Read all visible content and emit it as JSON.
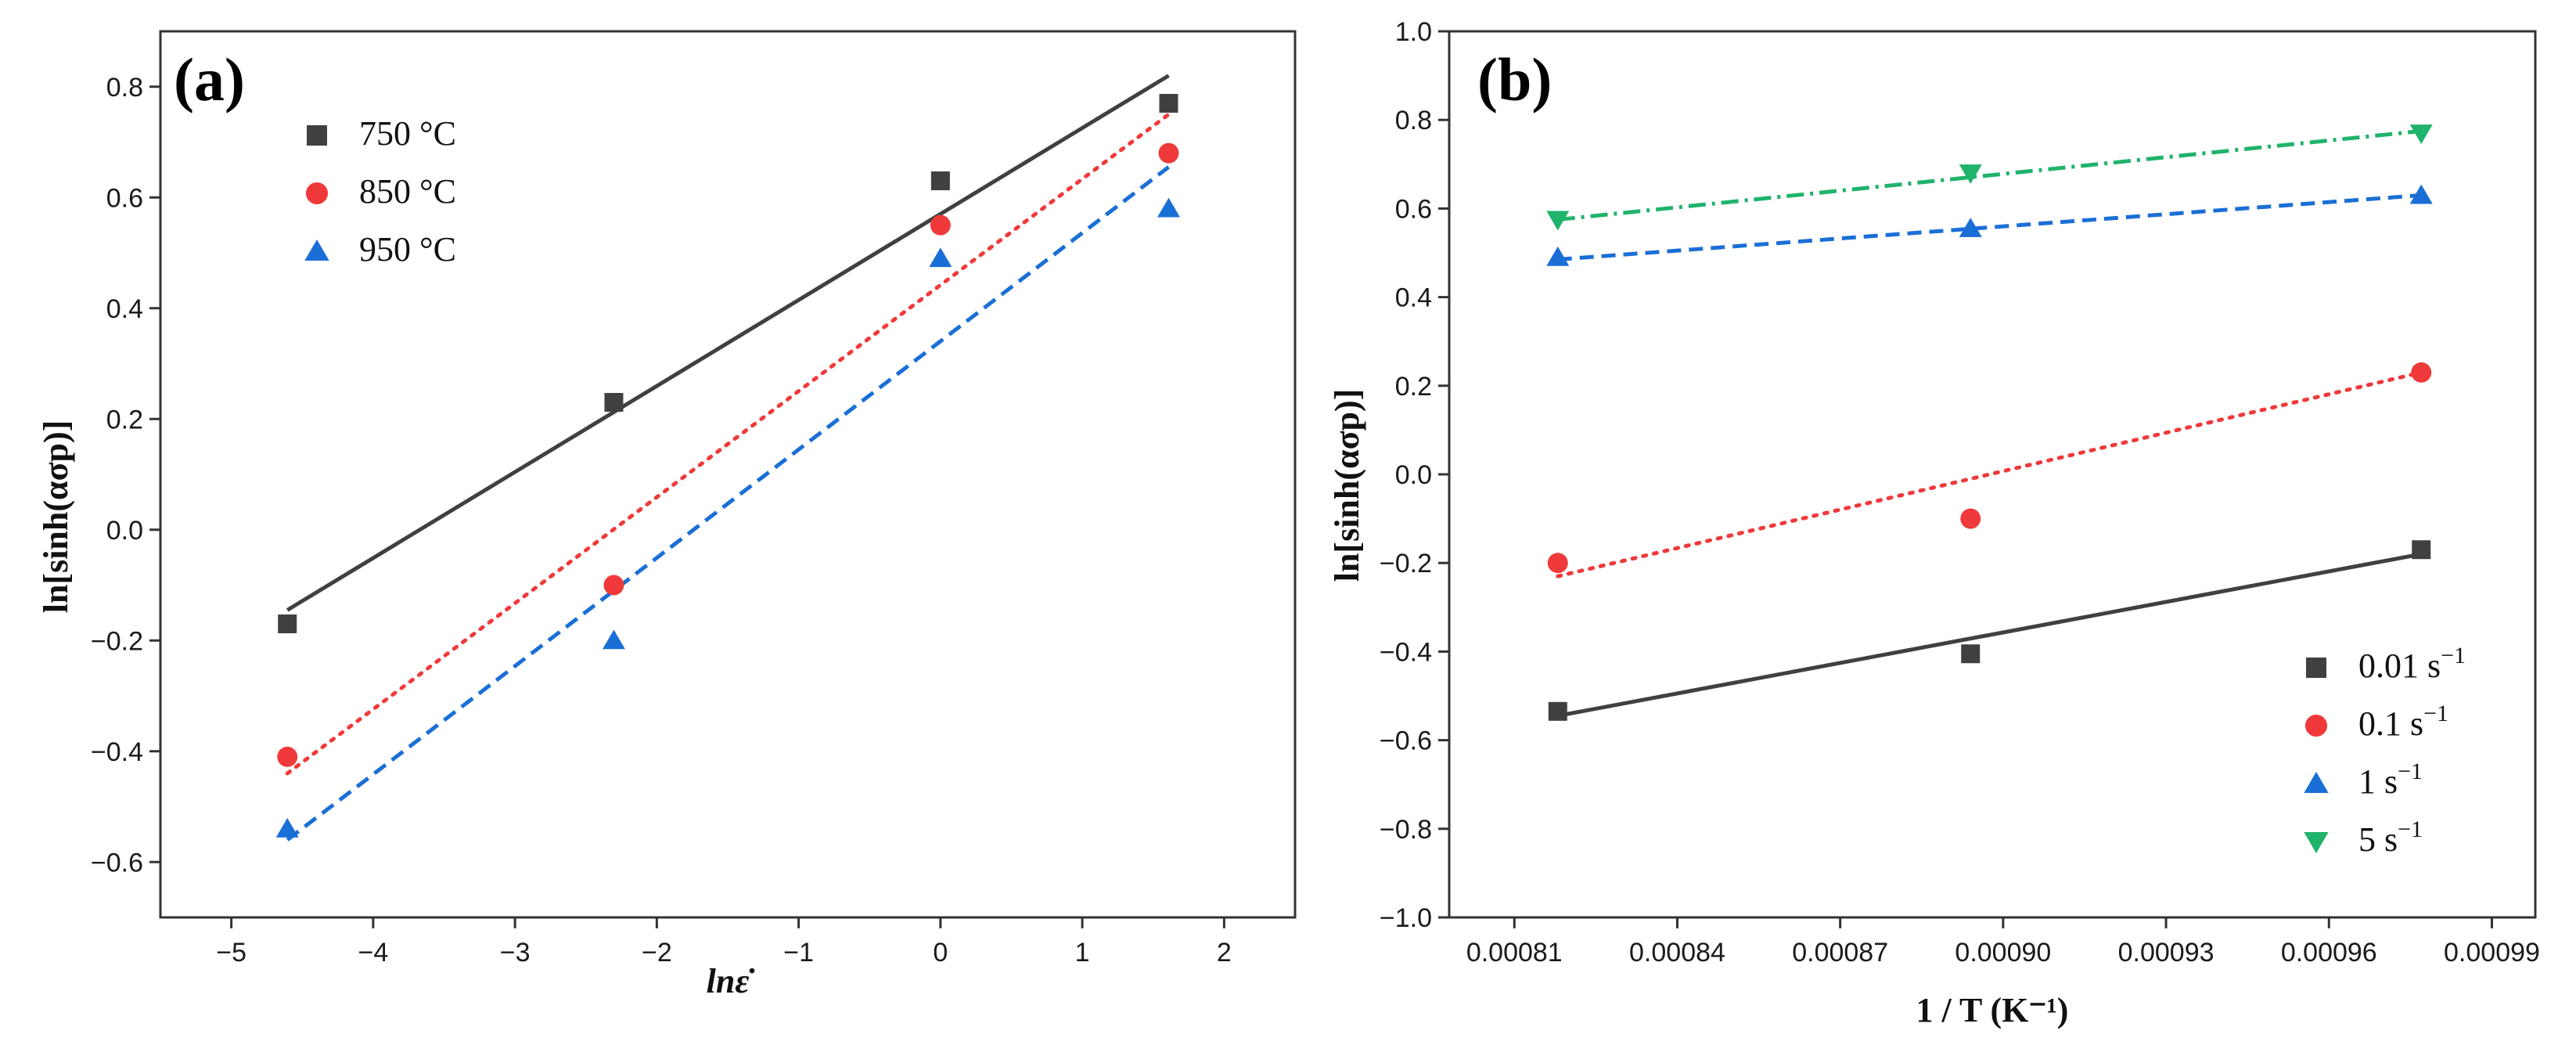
{
  "chart_data": [
    {
      "type": "scatter",
      "panel_label": "(a)",
      "xlabel": "lnε̇",
      "ylabel": "ln[sinh(ασp)]",
      "xlim": [
        -5.5,
        2.5
      ],
      "ylim": [
        -0.7,
        0.9
      ],
      "xticks": [
        -5,
        -4,
        -3,
        -2,
        -1,
        0,
        1,
        2
      ],
      "yticks": [
        -0.6,
        -0.4,
        -0.2,
        0.0,
        0.2,
        0.4,
        0.6,
        0.8
      ],
      "xtick_labels": [
        "−5",
        "−4",
        "−3",
        "−2",
        "−1",
        "0",
        "1",
        "2"
      ],
      "ytick_labels": [
        "−0.6",
        "−0.4",
        "−0.2",
        "0.0",
        "0.2",
        "0.4",
        "0.6",
        "0.8"
      ],
      "legend_position": "top-left",
      "series": [
        {
          "name": "750 °C",
          "marker": "square",
          "color": "#404040",
          "line": "solid",
          "x": [
            -4.605,
            -2.303,
            0,
            1.609
          ],
          "y": [
            -0.17,
            0.23,
            0.63,
            0.77
          ],
          "fit": {
            "x": [
              -4.605,
              1.609
            ],
            "y": [
              -0.145,
              0.82
            ]
          }
        },
        {
          "name": "850 °C",
          "marker": "circle",
          "color": "#f0393a",
          "line": "dotted",
          "x": [
            -4.605,
            -2.303,
            0,
            1.609
          ],
          "y": [
            -0.41,
            -0.1,
            0.55,
            0.68
          ],
          "fit": {
            "x": [
              -4.605,
              1.609
            ],
            "y": [
              -0.44,
              0.75
            ]
          }
        },
        {
          "name": "950 °C",
          "marker": "triangle-up",
          "color": "#1a6fd6",
          "line": "dashed",
          "x": [
            -4.605,
            -2.303,
            0,
            1.609
          ],
          "y": [
            -0.54,
            -0.2,
            0.49,
            0.58
          ],
          "fit": {
            "x": [
              -4.605,
              1.609
            ],
            "y": [
              -0.56,
              0.655
            ]
          }
        }
      ]
    },
    {
      "type": "scatter",
      "panel_label": "(b)",
      "xlabel": "1 / T (K⁻¹)",
      "ylabel": "ln[sinh(ασp)]",
      "xlim": [
        0.000798,
        0.000998
      ],
      "ylim": [
        -1.0,
        1.0
      ],
      "xticks": [
        0.00081,
        0.00084,
        0.00087,
        0.0009,
        0.00093,
        0.00096,
        0.00099
      ],
      "xtick_labels": [
        "0.00081",
        "0.00084",
        "0.00087",
        "0.00090",
        "0.00093",
        "0.00096",
        "0.00099"
      ],
      "yticks": [
        -1.0,
        -0.8,
        -0.6,
        -0.4,
        -0.2,
        0.0,
        0.2,
        0.4,
        0.6,
        0.8,
        1.0
      ],
      "ytick_labels": [
        "−1.0",
        "−0.8",
        "−0.6",
        "−0.4",
        "−0.2",
        "0.0",
        "0.2",
        "0.4",
        "0.6",
        "0.8",
        "1.0"
      ],
      "legend_position": "bottom-right",
      "series": [
        {
          "name": "0.01 s",
          "name_sup": "−1",
          "marker": "square",
          "color": "#404040",
          "line": "solid",
          "x": [
            0.000818,
            0.000894,
            0.000977
          ],
          "y": [
            -0.535,
            -0.405,
            -0.17
          ],
          "fit": {
            "x": [
              0.000818,
              0.000977
            ],
            "y": [
              -0.545,
              -0.18
            ]
          }
        },
        {
          "name": "0.1 s",
          "name_sup": "−1",
          "marker": "circle",
          "color": "#f0393a",
          "line": "dotted",
          "x": [
            0.000818,
            0.000894,
            0.000977
          ],
          "y": [
            -0.2,
            -0.1,
            0.23
          ],
          "fit": {
            "x": [
              0.000818,
              0.000977
            ],
            "y": [
              -0.23,
              0.23
            ]
          }
        },
        {
          "name": "1 s",
          "name_sup": "−1",
          "marker": "triangle-up",
          "color": "#1a6fd6",
          "line": "dashed",
          "x": [
            0.000818,
            0.000894,
            0.000977
          ],
          "y": [
            0.49,
            0.555,
            0.63
          ],
          "fit": {
            "x": [
              0.000818,
              0.000977
            ],
            "y": [
              0.485,
              0.63
            ]
          }
        },
        {
          "name": "5 s",
          "name_sup": "−1",
          "marker": "triangle-down",
          "color": "#1fb36b",
          "line": "dashdot",
          "x": [
            0.000818,
            0.000894,
            0.000977
          ],
          "y": [
            0.575,
            0.68,
            0.77
          ],
          "fit": {
            "x": [
              0.000818,
              0.000977
            ],
            "y": [
              0.575,
              0.775
            ]
          }
        }
      ]
    }
  ]
}
